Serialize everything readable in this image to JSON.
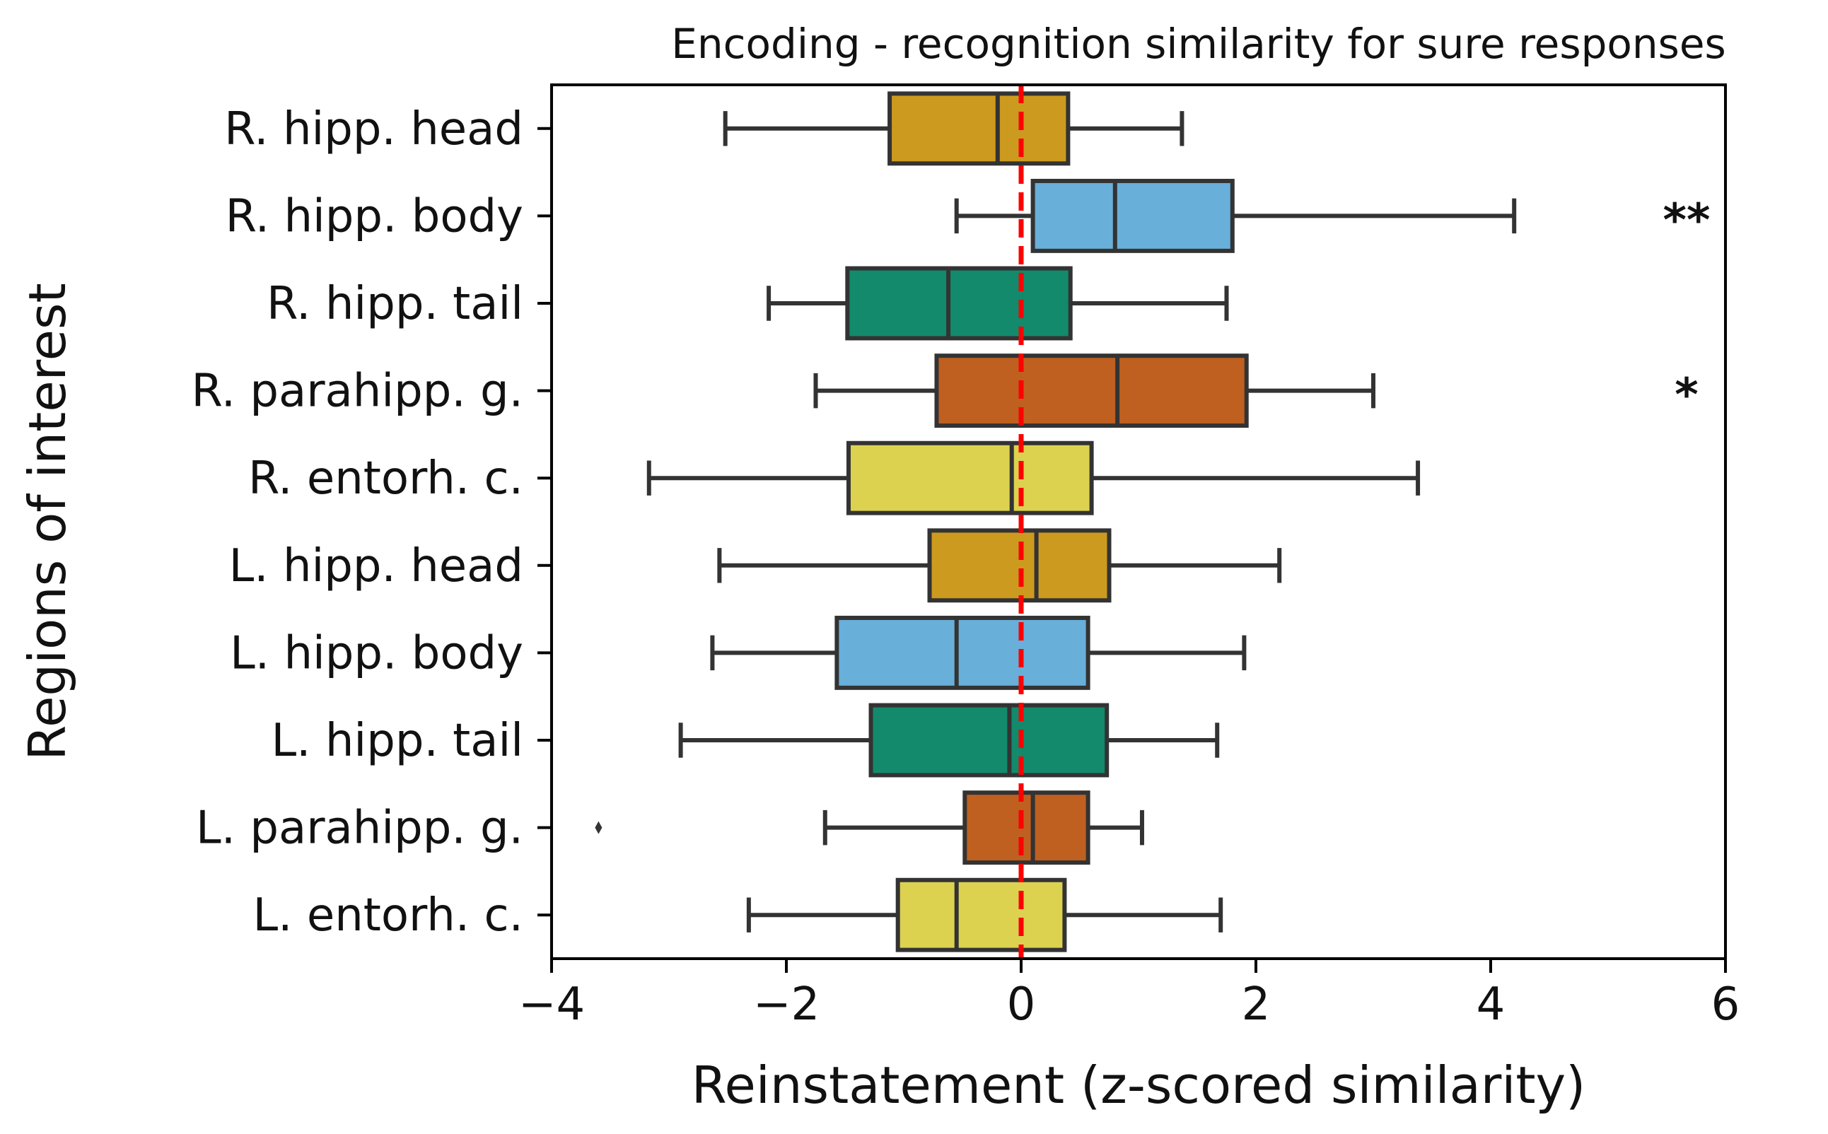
{
  "chart_data": {
    "type": "boxplot",
    "orientation": "horizontal",
    "title": "Encoding - recognition similarity for sure responses",
    "xlabel": "Reinstatement (z-scored similarity)",
    "ylabel": "Regions of interest",
    "xlim": [
      -4,
      6
    ],
    "xticks": [
      -4,
      -2,
      0,
      2,
      4,
      6
    ],
    "xtick_labels": [
      "−4",
      "−2",
      "0",
      "2",
      "4",
      "6"
    ],
    "grid": false,
    "reference_line": {
      "x": 0,
      "color": "#ff0000",
      "style": "dashed"
    },
    "categories": [
      "R. hipp. head",
      "R. hipp. body",
      "R. hipp. tail",
      "R. parahipp. g.",
      "R. entorh. c.",
      "L. hipp. head",
      "L. hipp. body",
      "L. hipp. tail",
      "L. parahipp. g.",
      "L. entorh. c."
    ],
    "boxes": [
      {
        "whisker_low": -2.52,
        "q1": -1.12,
        "median": -0.2,
        "q3": 0.4,
        "whisker_high": 1.37,
        "color": "#cc9a1e",
        "outliers": [],
        "annotation": ""
      },
      {
        "whisker_low": -0.55,
        "q1": 0.1,
        "median": 0.8,
        "q3": 1.8,
        "whisker_high": 4.2,
        "color": "#68afd9",
        "outliers": [],
        "annotation": "**"
      },
      {
        "whisker_low": -2.15,
        "q1": -1.48,
        "median": -0.62,
        "q3": 0.42,
        "whisker_high": 1.75,
        "color": "#128a6b",
        "outliers": [],
        "annotation": ""
      },
      {
        "whisker_low": -1.75,
        "q1": -0.72,
        "median": 0.82,
        "q3": 1.92,
        "whisker_high": 3.0,
        "color": "#bf6020",
        "outliers": [],
        "annotation": "*"
      },
      {
        "whisker_low": -3.17,
        "q1": -1.47,
        "median": -0.08,
        "q3": 0.6,
        "whisker_high": 3.38,
        "color": "#dcd250",
        "outliers": [],
        "annotation": ""
      },
      {
        "whisker_low": -2.57,
        "q1": -0.78,
        "median": 0.13,
        "q3": 0.75,
        "whisker_high": 2.2,
        "color": "#cc9a1e",
        "outliers": [],
        "annotation": ""
      },
      {
        "whisker_low": -2.63,
        "q1": -1.57,
        "median": -0.55,
        "q3": 0.57,
        "whisker_high": 1.9,
        "color": "#68afd9",
        "outliers": [],
        "annotation": ""
      },
      {
        "whisker_low": -2.9,
        "q1": -1.28,
        "median": -0.1,
        "q3": 0.73,
        "whisker_high": 1.67,
        "color": "#128a6b",
        "outliers": [],
        "annotation": ""
      },
      {
        "whisker_low": -1.67,
        "q1": -0.48,
        "median": 0.1,
        "q3": 0.57,
        "whisker_high": 1.03,
        "color": "#bf6020",
        "outliers": [
          -3.6
        ],
        "annotation": ""
      },
      {
        "whisker_low": -2.32,
        "q1": -1.05,
        "median": -0.55,
        "q3": 0.37,
        "whisker_high": 1.7,
        "color": "#dcd250",
        "outliers": [],
        "annotation": ""
      }
    ]
  }
}
